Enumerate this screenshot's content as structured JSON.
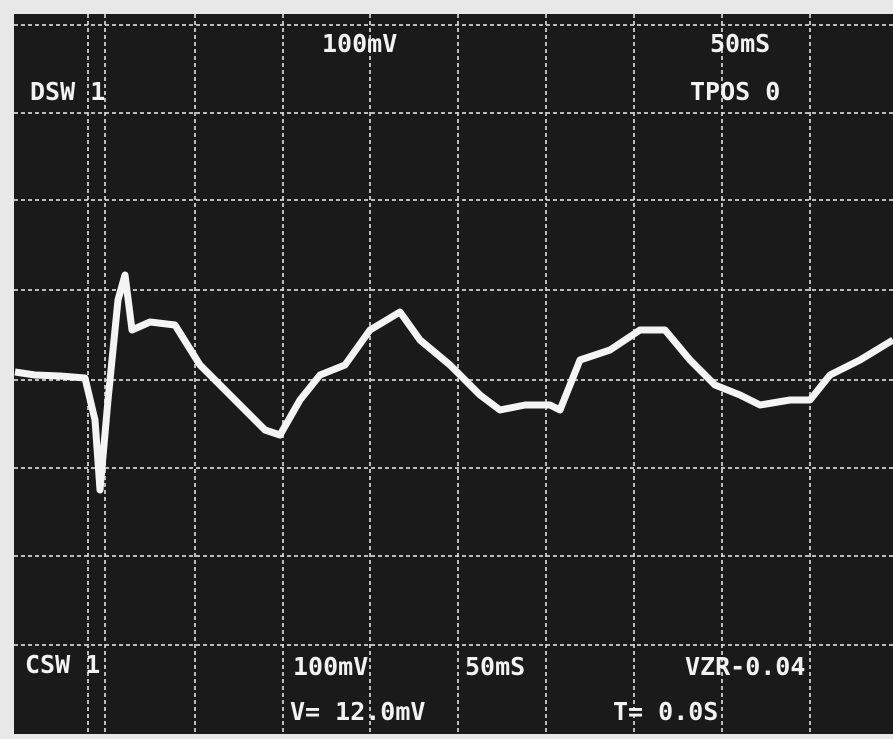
{
  "screen": {
    "top": {
      "volts_per_div": "100mV",
      "time_per_div": "50mS",
      "mode": "DSW 1",
      "trigger_position": "TPOS 0"
    },
    "bottom": {
      "mode": "CSW 1",
      "volts_per_div": "100mV",
      "time_per_div": "50mS",
      "zero_reference": "VZR-0.04",
      "voltage_readout": "V= 12.0mV",
      "time_readout": "T= 0.0S"
    }
  }
}
